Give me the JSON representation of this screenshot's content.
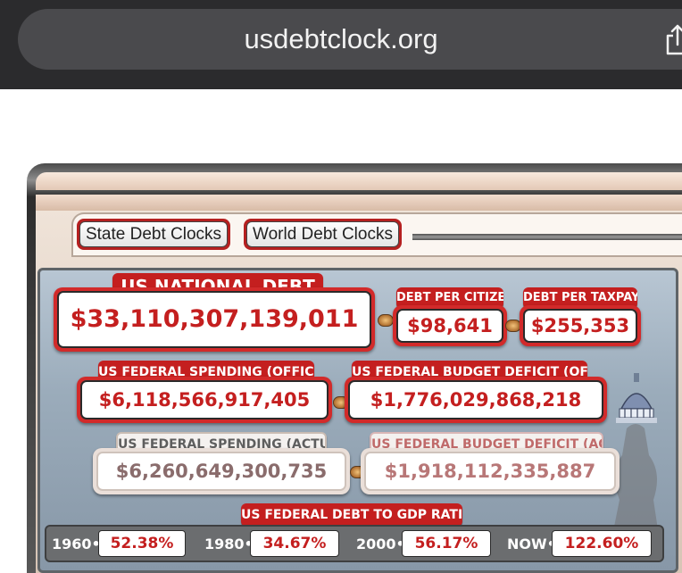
{
  "browser": {
    "url": "usdebtclock.org"
  },
  "nav": {
    "state_clocks": "State Debt Clocks",
    "world_clocks": "World Debt Clocks"
  },
  "national_debt": {
    "label": "US NATIONAL DEBT",
    "value": "$33,110,307,139,011"
  },
  "debt_per_citizen": {
    "label": "DEBT PER CITIZEN",
    "value": "$98,641"
  },
  "debt_per_taxpayer": {
    "label": "DEBT PER TAXPAYER",
    "value": "$255,353"
  },
  "spending_official": {
    "label": "US FEDERAL SPENDING (OFFICIAL)",
    "value": "$6,118,566,917,405"
  },
  "deficit_official": {
    "label": "US FEDERAL BUDGET DEFICIT (OFFICIAL)",
    "value": "$1,776,029,868,218"
  },
  "spending_actual": {
    "label": "US FEDERAL SPENDING (ACTUAL)",
    "value": "$6,260,649,300,735"
  },
  "deficit_actual": {
    "label": "US FEDERAL BUDGET DEFICIT (ACTUAL)",
    "value": "$1,918,112,335,887"
  },
  "gdp_ratio": {
    "label": "US FEDERAL DEBT TO GDP RATIO",
    "items": [
      {
        "year": "1960",
        "value": "52.38%"
      },
      {
        "year": "1980",
        "value": "34.67%"
      },
      {
        "year": "2000",
        "value": "56.17%"
      },
      {
        "year": "NOW",
        "value": "122.60%"
      }
    ]
  },
  "colors": {
    "accent_red": "#c41f1f",
    "chrome_dark": "#2b2b2d",
    "board_blue": "#9bacbb"
  }
}
